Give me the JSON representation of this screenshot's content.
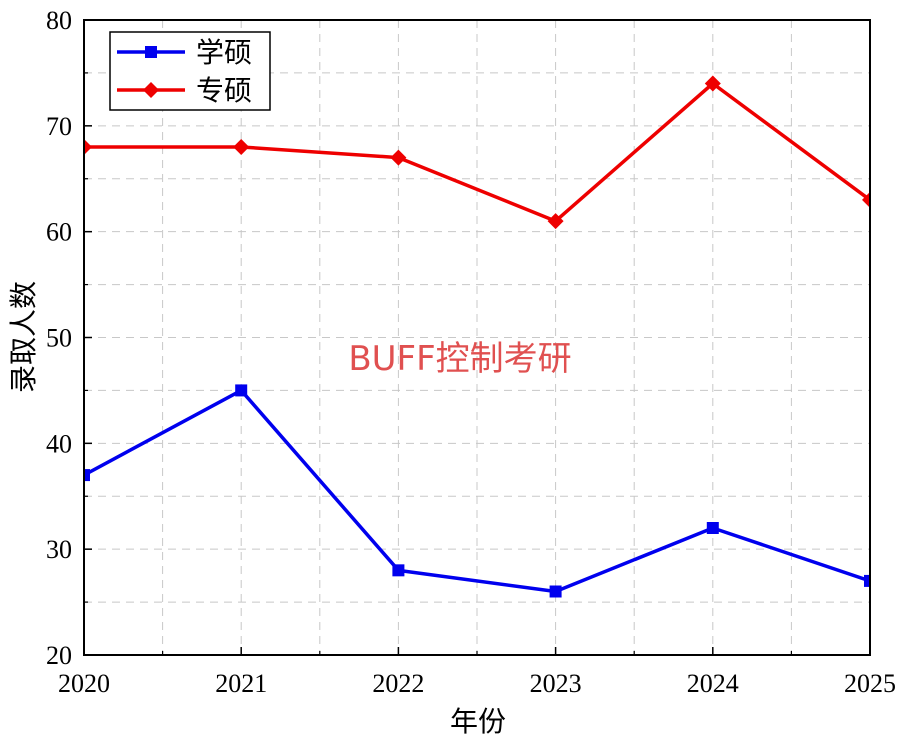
{
  "chart_data": {
    "type": "line",
    "categories": [
      "2020",
      "2021",
      "2022",
      "2023",
      "2024",
      "2025"
    ],
    "x": [
      2020,
      2021,
      2022,
      2023,
      2024,
      2025
    ],
    "series": [
      {
        "name": "学硕",
        "values": [
          37,
          45,
          28,
          26,
          32,
          27
        ],
        "color": "#0000ee",
        "marker": "square"
      },
      {
        "name": "专硕",
        "values": [
          68,
          68,
          67,
          61,
          74,
          63
        ],
        "color": "#ee0000",
        "marker": "diamond"
      }
    ],
    "xlabel": "年份",
    "ylabel": "录取人数",
    "xlim": [
      2020,
      2025
    ],
    "ylim": [
      20,
      80
    ],
    "yticks": [
      20,
      30,
      40,
      50,
      60,
      70,
      80
    ],
    "grid": true,
    "legend_position": "top-left",
    "watermark": {
      "text": "BUFF控制考研",
      "color": "#e05050"
    }
  }
}
